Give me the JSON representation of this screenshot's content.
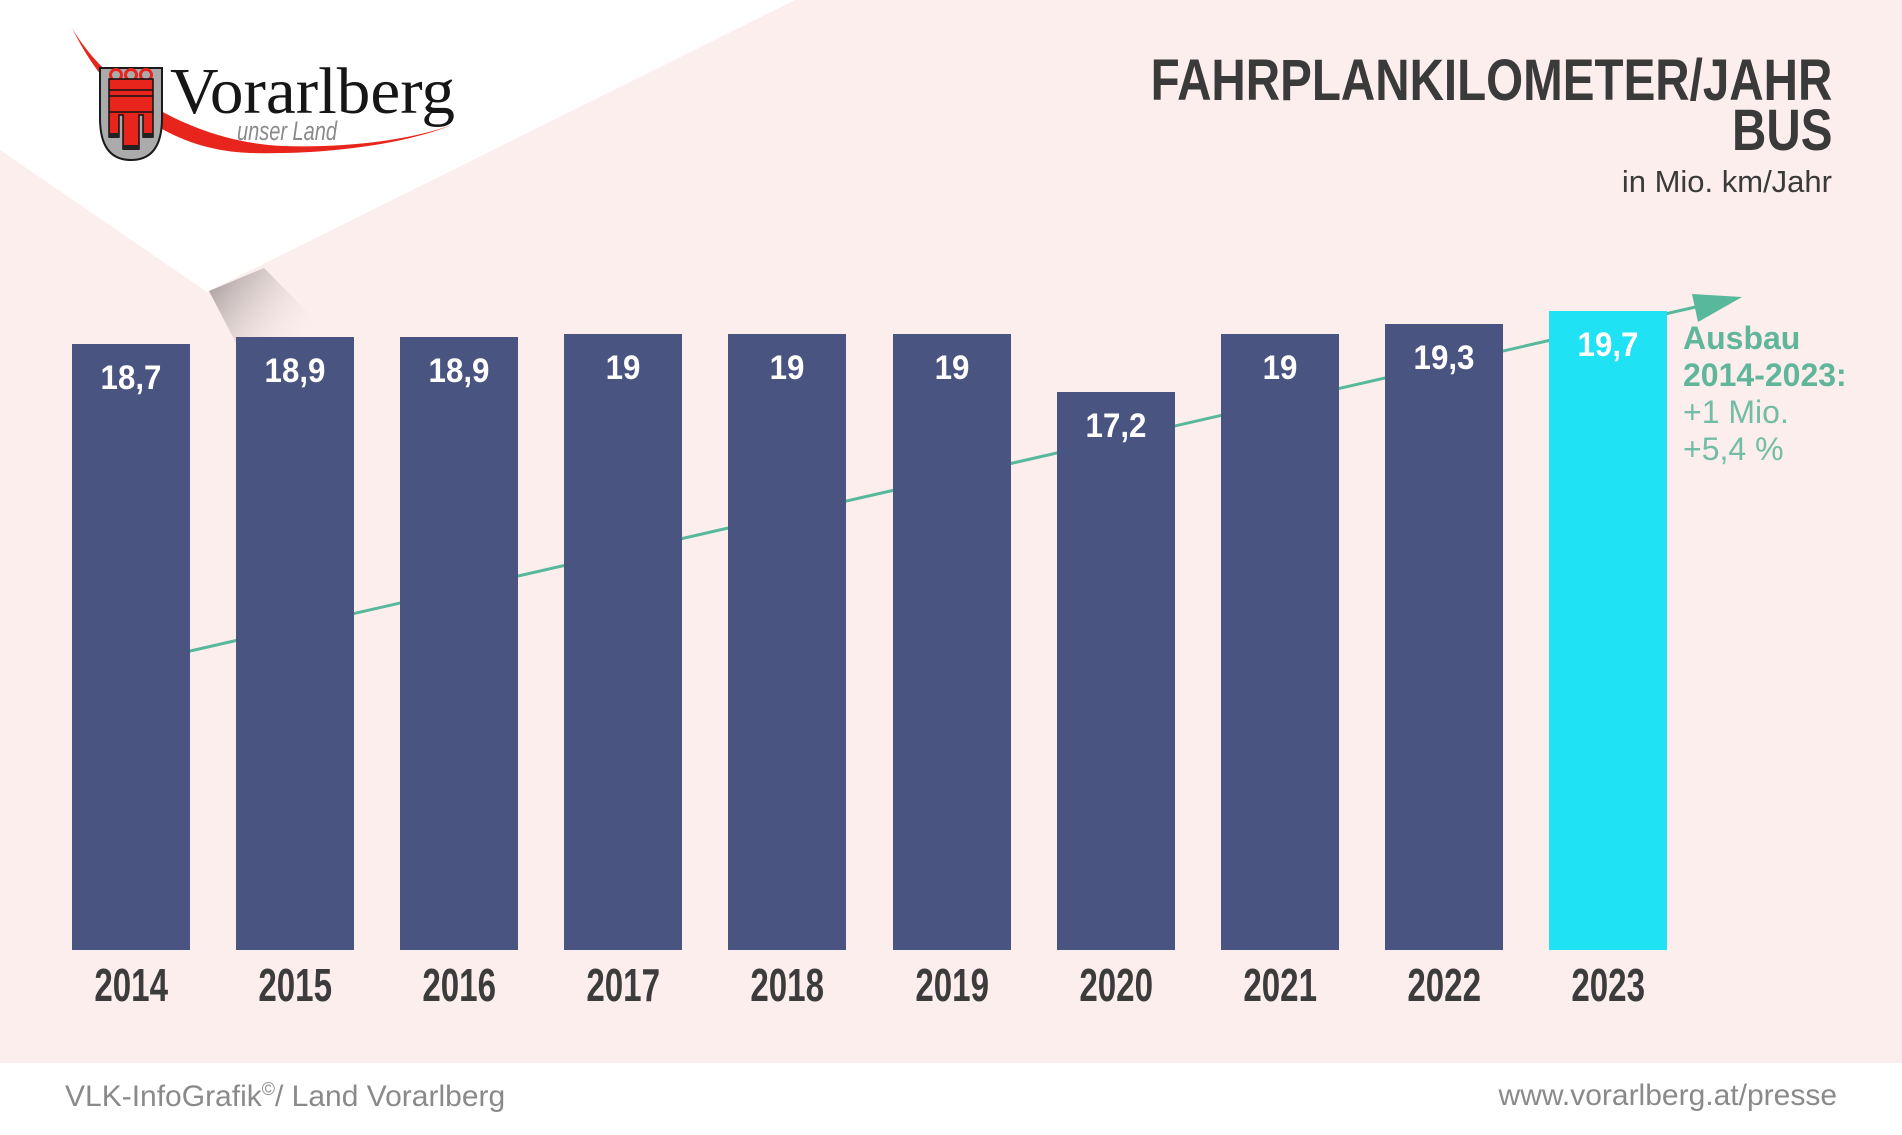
{
  "logo": {
    "region_name": "Vorarlberg",
    "tagline": "unser Land"
  },
  "header": {
    "title_line1": "FAHRPLANKILOMETER/JAHR",
    "title_line2": "BUS",
    "subtitle": "in Mio. km/Jahr"
  },
  "chart_data": {
    "type": "bar",
    "title": "FAHRPLANKILOMETER/JAHR BUS",
    "unit": "in Mio. km/Jahr",
    "categories": [
      "2014",
      "2015",
      "2016",
      "2017",
      "2018",
      "2019",
      "2020",
      "2021",
      "2022",
      "2023"
    ],
    "values": [
      18.7,
      18.9,
      18.9,
      19,
      19,
      19,
      17.2,
      19,
      19.3,
      19.7
    ],
    "value_labels": [
      "18,7",
      "18,9",
      "18,9",
      "19",
      "19",
      "19",
      "17,2",
      "19",
      "19,3",
      "19,7"
    ],
    "ylim": [
      0,
      21
    ],
    "grid": false,
    "legend": "none",
    "highlight_index": 9,
    "trend_arrow": {
      "from_year": "2014",
      "to_year": "2023",
      "direction": "up"
    },
    "annotation": {
      "heading_line1": "Ausbau",
      "heading_line2": "2014-2023:",
      "line1": "+1 Mio.",
      "line2": "+5,4 %"
    }
  },
  "footer": {
    "credit_name": "VLK-InfoGrafik",
    "credit_sup": "©",
    "credit_rest": "/ Land Vorarlberg",
    "website": "www.vorarlberg.at/presse"
  },
  "colors": {
    "background": "#fceeec",
    "bar": "#4a5480",
    "bar_highlight": "#1fe2f4",
    "bar_value_text": "#ffffff",
    "trend": "#57b89b",
    "annotation_heading": "#60b69a",
    "annotation_text": "#72bda6",
    "title_text": "#3a3a3a",
    "year_text": "#3c3c3c",
    "footer_text": "#8a8a8a",
    "logo_red": "#e8251d",
    "fold_white": "#ffffff",
    "fold_shadow": "#9c9294"
  }
}
